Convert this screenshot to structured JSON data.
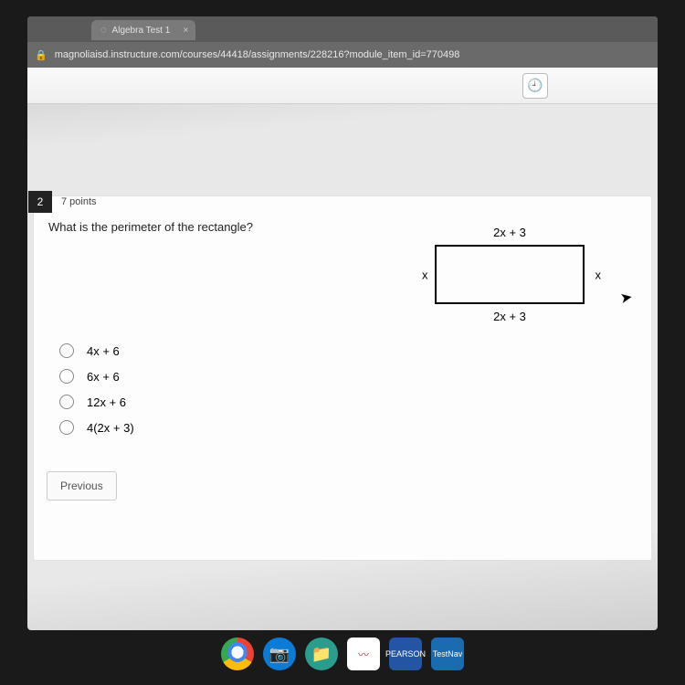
{
  "browser": {
    "tab_title": "Algebra Test 1",
    "url": "magnoliaisd.instructure.com/courses/44418/assignments/228216?module_item_id=770498"
  },
  "question": {
    "number": "2",
    "points": "7 points",
    "prompt": "What is the perimeter of the rectangle?",
    "diagram": {
      "top": "2x + 3",
      "bottom": "2x + 3",
      "left": "x",
      "right": "x"
    },
    "options": [
      "4x + 6",
      "6x + 6",
      "12x + 6",
      "4(2x + 3)"
    ]
  },
  "nav": {
    "previous": "Previous"
  },
  "taskbar": {
    "pearson1": "PEARSON",
    "pearson2": "TestNav"
  }
}
